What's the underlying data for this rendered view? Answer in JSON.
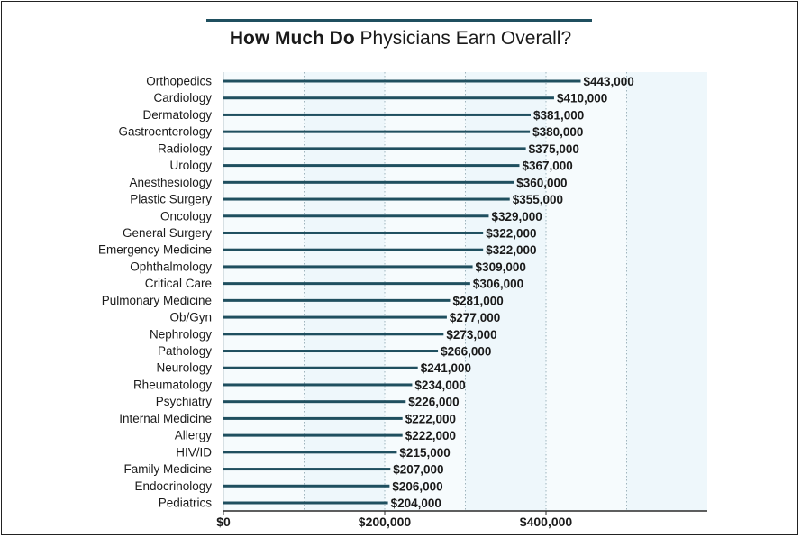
{
  "chart_data": {
    "type": "bar",
    "orientation": "horizontal",
    "title_bold": "How Much Do",
    "title_rest": " Physicians Earn Overall?",
    "categories": [
      "Orthopedics",
      "Cardiology",
      "Dermatology",
      "Gastroenterology",
      "Radiology",
      "Urology",
      "Anesthesiology",
      "Plastic Surgery",
      "Oncology",
      "General Surgery",
      "Emergency Medicine",
      "Ophthalmology",
      "Critical Care",
      "Pulmonary Medicine",
      "Ob/Gyn",
      "Nephrology",
      "Pathology",
      "Neurology",
      "Rheumatology",
      "Psychiatry",
      "Internal Medicine",
      "Allergy",
      "HIV/ID",
      "Family Medicine",
      "Endocrinology",
      "Pediatrics"
    ],
    "values": [
      443000,
      410000,
      381000,
      380000,
      375000,
      367000,
      360000,
      355000,
      329000,
      322000,
      322000,
      309000,
      306000,
      281000,
      277000,
      273000,
      266000,
      241000,
      234000,
      226000,
      222000,
      222000,
      215000,
      207000,
      206000,
      204000
    ],
    "value_labels": [
      "$443,000",
      "$410,000",
      "$381,000",
      "$380,000",
      "$375,000",
      "$367,000",
      "$360,000",
      "$355,000",
      "$329,000",
      "$322,000",
      "$322,000",
      "$309,000",
      "$306,000",
      "$281,000",
      "$277,000",
      "$273,000",
      "$266,000",
      "$241,000",
      "$234,000",
      "$226,000",
      "$222,000",
      "$222,000",
      "$215,000",
      "$207,000",
      "$206,000",
      "$204,000"
    ],
    "x_ticks": [
      0,
      200000,
      400000
    ],
    "x_tick_labels": [
      "$0",
      "$200,000",
      "$400,000"
    ],
    "xlim": [
      0,
      600000
    ],
    "gridlines": [
      100000,
      200000,
      300000,
      400000,
      500000
    ],
    "colors": {
      "bar": "#1f4f5f",
      "grid": "#9fb4bd",
      "band": "#eef7fb",
      "band_light": "#f6fbfd"
    }
  }
}
